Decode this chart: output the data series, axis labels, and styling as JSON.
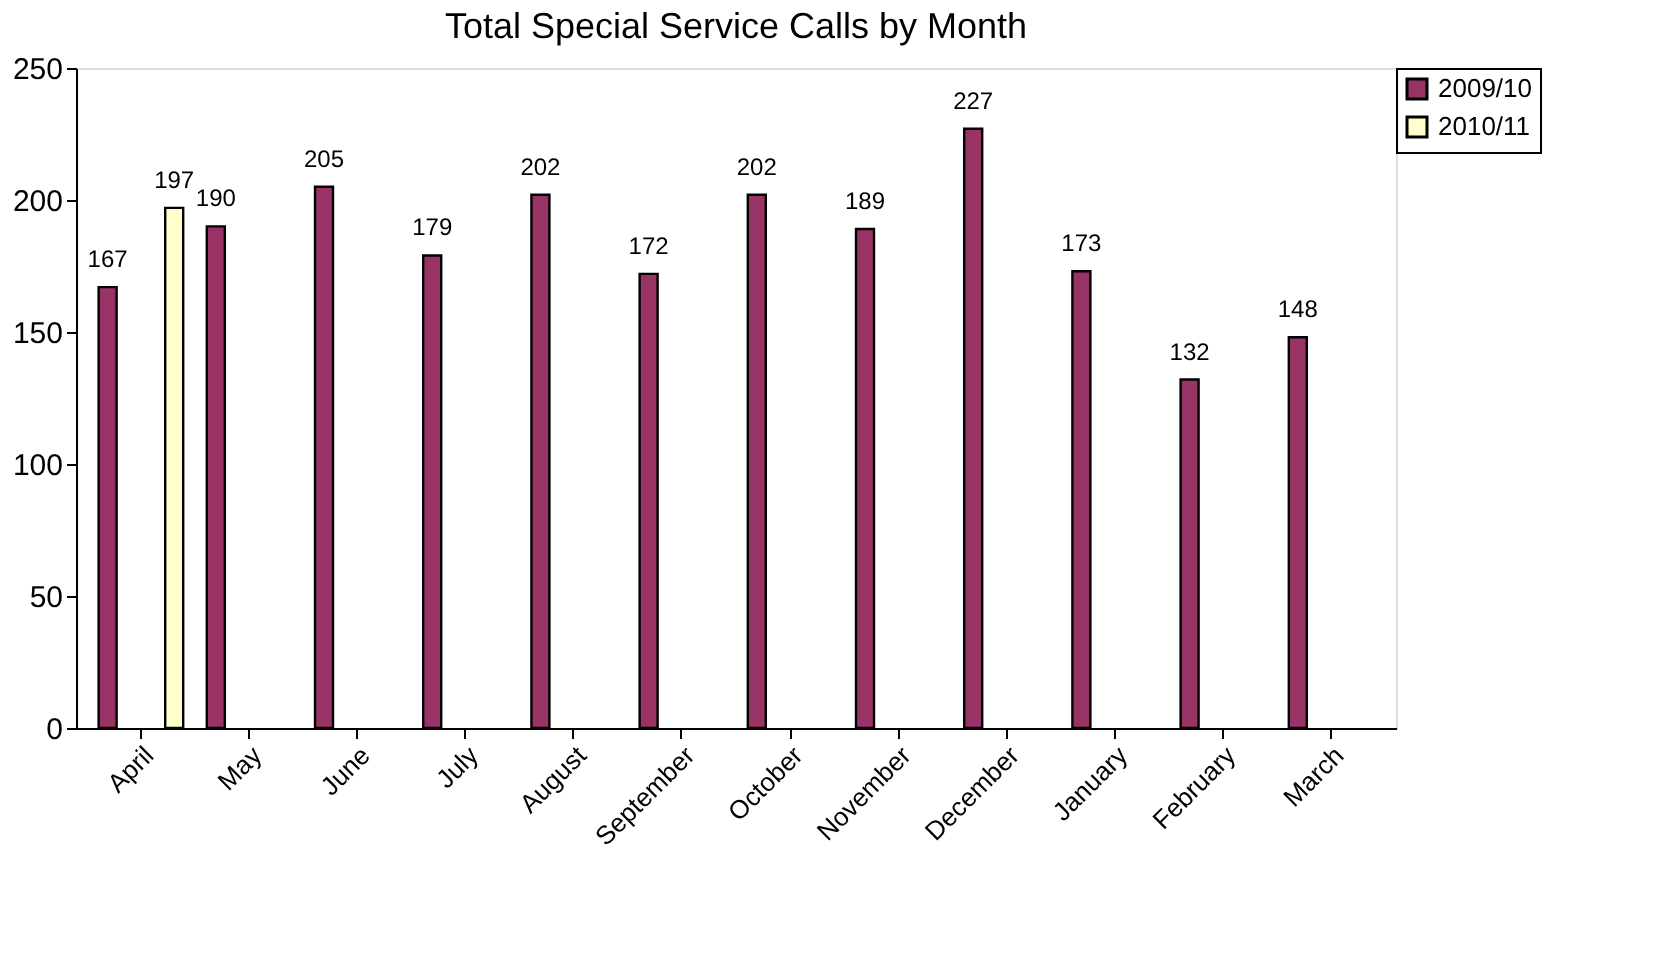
{
  "chart_data": {
    "type": "bar",
    "title": "Total Special Service Calls by Month",
    "categories": [
      "April",
      "May",
      "June",
      "July",
      "August",
      "September",
      "October",
      "November",
      "December",
      "January",
      "February",
      "March"
    ],
    "series": [
      {
        "name": "2009/10",
        "color": "#993366",
        "values": [
          167,
          190,
          205,
          179,
          202,
          172,
          202,
          189,
          227,
          173,
          132,
          148
        ]
      },
      {
        "name": "2010/11",
        "color": "#ffffcc",
        "values": [
          197,
          null,
          null,
          null,
          null,
          null,
          null,
          null,
          null,
          null,
          null,
          null
        ]
      }
    ],
    "ylim": [
      0,
      250
    ],
    "yticks": [
      0,
      50,
      100,
      150,
      200,
      250
    ],
    "grid": false,
    "legend": "top right",
    "data_labels": true
  }
}
